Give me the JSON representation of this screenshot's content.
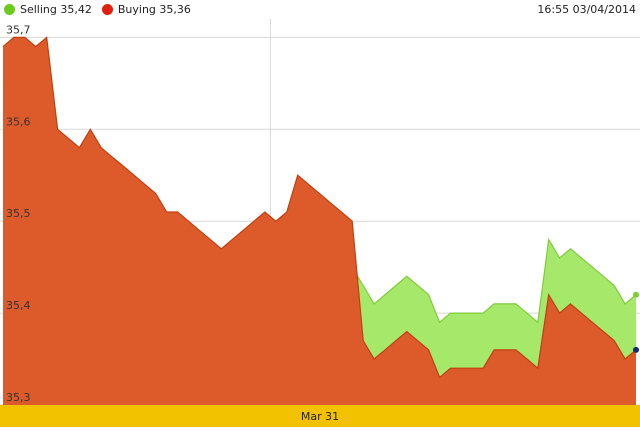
{
  "legend": {
    "selling": {
      "label": "Selling 35,42",
      "color": "#6ccc1c"
    },
    "buying": {
      "label": "Buying 35,36",
      "color": "#e02010"
    }
  },
  "timestamp": "16:55 03/04/2014",
  "axis": {
    "date_label": "Mar 31",
    "band_color": "#f2c200"
  },
  "chart_data": {
    "type": "area",
    "title": "",
    "xlabel": "",
    "ylabel": "",
    "ylim": [
      35.3,
      35.72
    ],
    "yticks": [
      "35,7",
      "35,6",
      "35,5",
      "35,4",
      "35,3"
    ],
    "ytick_values": [
      35.7,
      35.6,
      35.5,
      35.4,
      35.3
    ],
    "xticks": [
      "Mar 31"
    ],
    "xtick_index": 24.5,
    "grid": true,
    "legend_position": "top-left",
    "series": [
      {
        "name": "Selling",
        "fill": "#a6e86a",
        "stroke": "#7fcc3a",
        "values": [
          35.65,
          35.66,
          35.65,
          35.64,
          35.65,
          35.56,
          35.55,
          35.54,
          35.55,
          35.53,
          35.52,
          35.51,
          35.5,
          35.49,
          35.48,
          35.46,
          35.46,
          35.45,
          35.44,
          35.43,
          35.42,
          35.43,
          35.44,
          35.45,
          35.47,
          35.46,
          35.47,
          35.5,
          35.49,
          35.48,
          35.47,
          35.46,
          35.45,
          35.43,
          35.41,
          35.42,
          35.43,
          35.44,
          35.43,
          35.42,
          35.39,
          35.4,
          35.4,
          35.4,
          35.4,
          35.41,
          35.41,
          35.41,
          35.4,
          35.39,
          35.48,
          35.46,
          35.47,
          35.46,
          35.45,
          35.44,
          35.43,
          35.41,
          35.42
        ]
      },
      {
        "name": "Buying",
        "fill": "#dd5b2b",
        "stroke": "#c0400f",
        "values": [
          35.69,
          35.7,
          35.7,
          35.69,
          35.7,
          35.6,
          35.59,
          35.58,
          35.6,
          35.58,
          35.57,
          35.56,
          35.55,
          35.54,
          35.53,
          35.51,
          35.51,
          35.5,
          35.49,
          35.48,
          35.47,
          35.48,
          35.49,
          35.5,
          35.51,
          35.5,
          35.51,
          35.55,
          35.54,
          35.53,
          35.52,
          35.51,
          35.5,
          35.37,
          35.35,
          35.36,
          35.37,
          35.38,
          35.37,
          35.36,
          35.33,
          35.34,
          35.34,
          35.34,
          35.34,
          35.36,
          35.36,
          35.36,
          35.35,
          35.34,
          35.42,
          35.4,
          35.41,
          35.4,
          35.39,
          35.38,
          35.37,
          35.35,
          35.36
        ]
      }
    ]
  }
}
